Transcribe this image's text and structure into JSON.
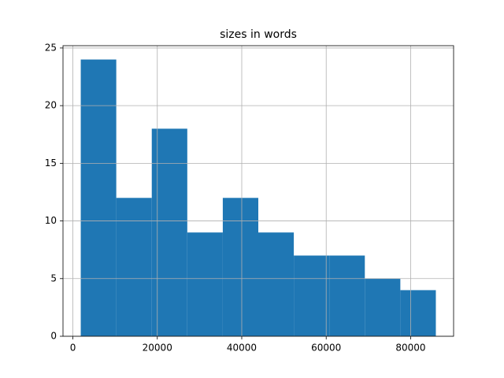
{
  "chart_data": {
    "type": "histogram",
    "title": "sizes in words",
    "bins": [
      1870,
      10280,
      18690,
      27100,
      35510,
      43920,
      52330,
      60740,
      69150,
      77560,
      85970
    ],
    "values": [
      24,
      12,
      18,
      9,
      12,
      9,
      7,
      7,
      5,
      4
    ],
    "color": "#1f77b4",
    "xlim": [
      -2335,
      90175
    ],
    "xticks": [
      0,
      20000,
      40000,
      60000,
      80000
    ],
    "ylim": [
      0,
      25.2
    ],
    "yticks": [
      0,
      5,
      10,
      15,
      20,
      25
    ],
    "grid": true
  }
}
